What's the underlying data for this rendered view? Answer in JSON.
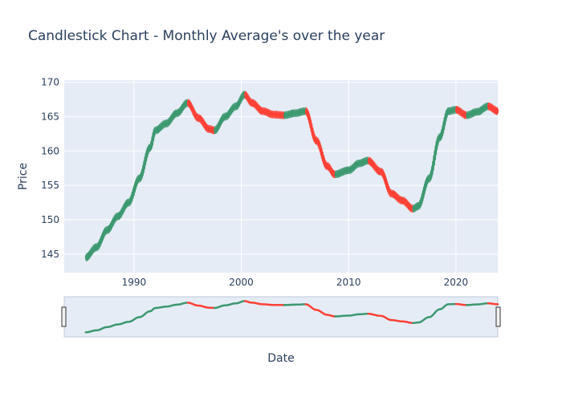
{
  "chart_data": {
    "type": "candlestick",
    "title": "Candlestick Chart - Monthly Average's over the year",
    "xlabel": "Date",
    "ylabel": "Price",
    "xlim": [
      1983.5,
      2023.9
    ],
    "ylim": [
      142.3,
      170.3
    ],
    "x_ticks": [
      1990,
      2000,
      2010,
      2020
    ],
    "y_ticks": [
      145,
      150,
      155,
      160,
      165,
      170
    ],
    "grid": true,
    "legend": "none",
    "rangeslider": true,
    "colors": {
      "increasing": "#3d9970",
      "decreasing": "#ff4136",
      "plot_bg": "#e5ecf6",
      "grid": "#ffffff",
      "text": "#2a3f5f"
    },
    "series": [
      {
        "x": [
          1985.5,
          1986.5,
          1987.5,
          1988.5,
          1989.5,
          1990.5,
          1991.5,
          1992.0,
          1993.0,
          1994.0,
          1995.0,
          1996.0,
          1997.0,
          1997.5,
          1998.5,
          1999.5,
          2000.3,
          2001.0,
          2002.0,
          2003.0,
          2004.0,
          2005.0,
          2006.0,
          2007.0,
          2008.0,
          2008.7,
          2010.0,
          2011.0,
          2011.8,
          2013.0,
          2014.0,
          2015.0,
          2016.0,
          2016.5,
          2017.5,
          2018.5,
          2019.3,
          2020.0,
          2021.0,
          2022.0,
          2023.0,
          2023.9
        ],
        "values": [
          144.5,
          146.0,
          148.5,
          150.5,
          152.5,
          156.0,
          160.5,
          163.0,
          164.0,
          165.5,
          167.0,
          164.8,
          163.2,
          163.0,
          165.0,
          166.5,
          168.2,
          167.0,
          165.8,
          165.3,
          165.2,
          165.5,
          165.8,
          161.5,
          157.8,
          156.6,
          157.2,
          158.2,
          158.6,
          157.0,
          153.8,
          152.8,
          151.6,
          152.0,
          156.0,
          162.0,
          165.8,
          166.0,
          165.2,
          165.7,
          166.5,
          165.8
        ]
      }
    ]
  }
}
